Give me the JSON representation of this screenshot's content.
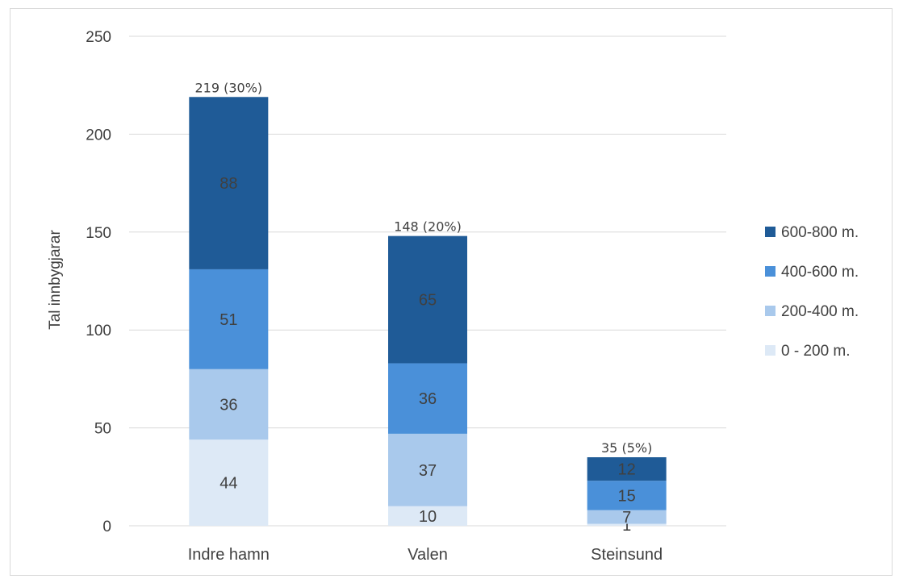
{
  "chart_data": {
    "type": "bar",
    "stacked": true,
    "title": "",
    "xlabel": "",
    "ylabel": "Tal innbygjarar",
    "ylim": [
      0,
      250
    ],
    "yticks": [
      0,
      50,
      100,
      150,
      200,
      250
    ],
    "grid": true,
    "legend_position": "right",
    "categories": [
      "Indre hamn",
      "Valen",
      "Steinsund"
    ],
    "series": [
      {
        "name": "0 - 200 m.",
        "color": "#dde9f6",
        "values": [
          44,
          10,
          1
        ]
      },
      {
        "name": "200-400 m.",
        "color": "#a9c9ec",
        "values": [
          36,
          37,
          7
        ]
      },
      {
        "name": "400-600 m.",
        "color": "#4a90d9",
        "values": [
          51,
          36,
          15
        ]
      },
      {
        "name": "600-800 m.",
        "color": "#1f5b97",
        "values": [
          88,
          65,
          12
        ]
      }
    ],
    "total_labels": [
      "219 (30%)",
      "148 (20%)",
      "35 (5%)"
    ]
  }
}
